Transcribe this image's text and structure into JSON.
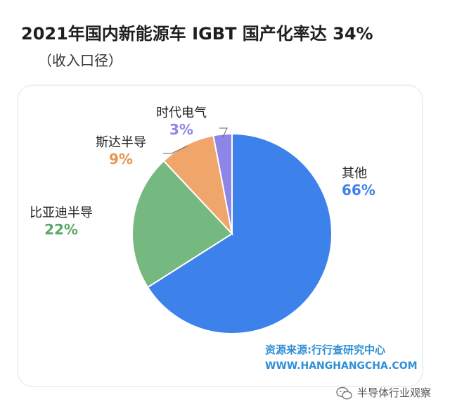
{
  "title": "2021年国内新能源车 IGBT 国产化率达 34%",
  "subtitle": "（收入口径）",
  "chart_data": {
    "type": "pie",
    "slices": [
      {
        "name": "其他",
        "value": 66,
        "label": "66%",
        "color": "#3d82ea"
      },
      {
        "name": "比亚迪半导",
        "value": 22,
        "label": "22%",
        "color": "#75b880"
      },
      {
        "name": "斯达半导",
        "value": 9,
        "label": "9%",
        "color": "#f0a66b"
      },
      {
        "name": "时代电气",
        "value": 3,
        "label": "3%",
        "color": "#8d86e8"
      }
    ]
  },
  "source": {
    "text": "资源来源:行行查研究中心",
    "url": "WWW.HANGHANGCHA.COM"
  },
  "watermark": {
    "text": "半导体行业观察",
    "icon": "wechat-icon"
  }
}
